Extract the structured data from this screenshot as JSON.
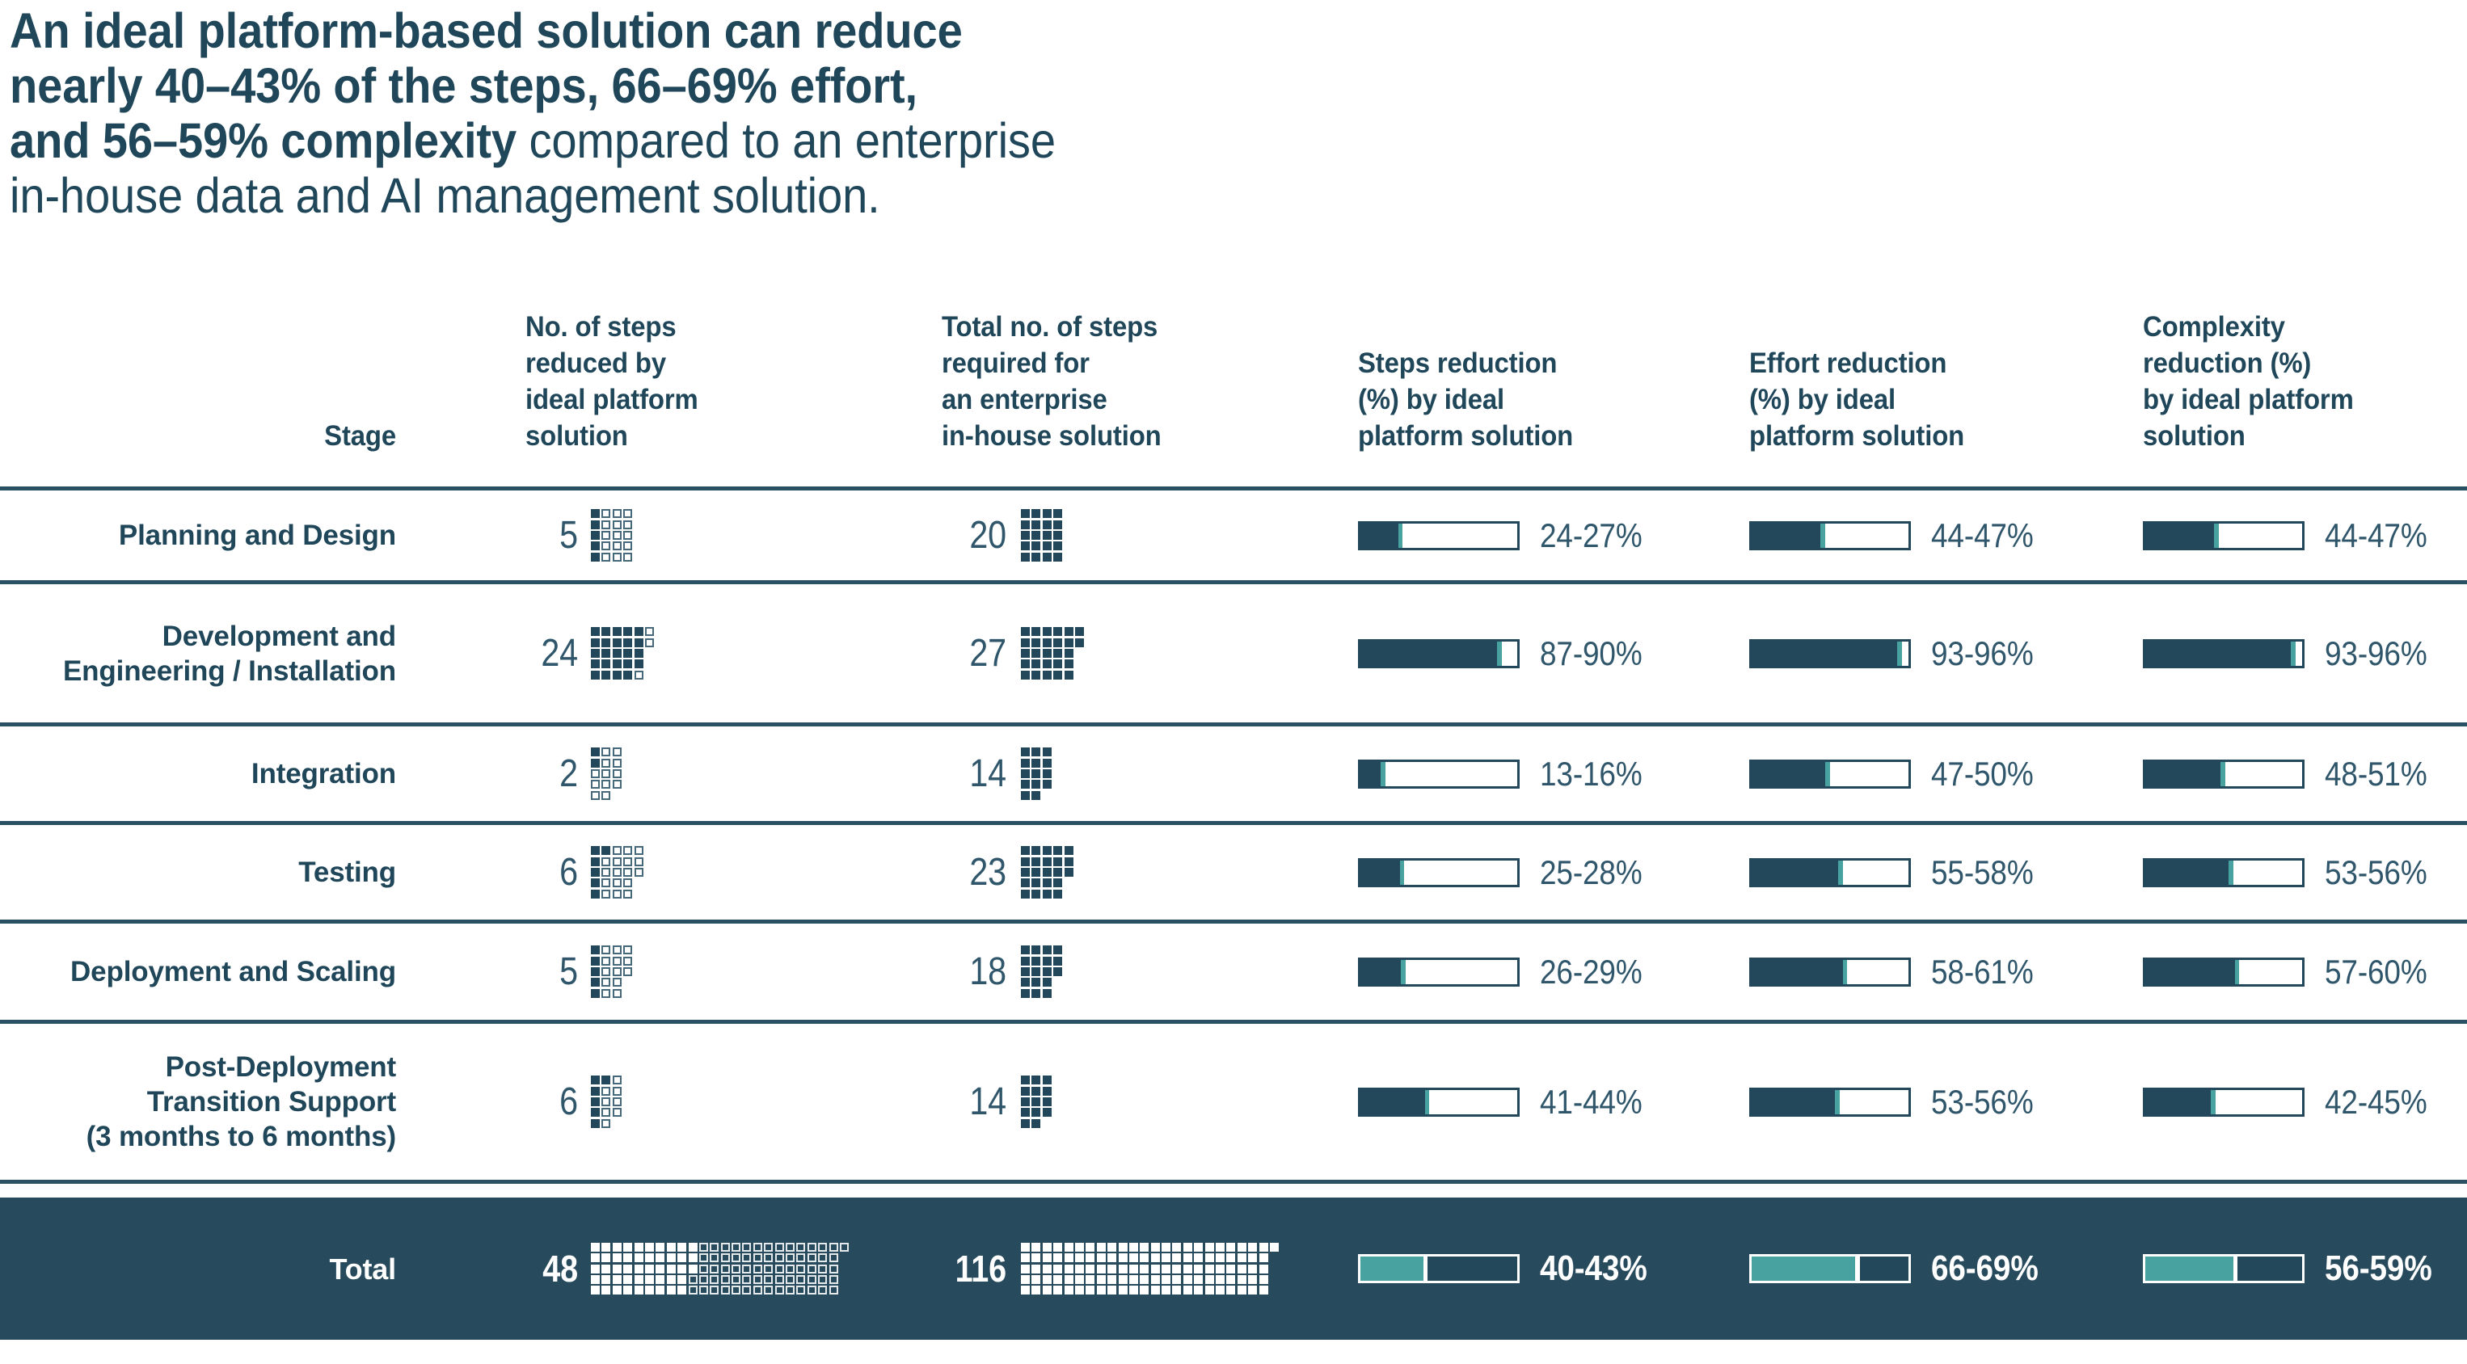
{
  "title": {
    "line1_bold": "An ideal platform-based solution can reduce",
    "line2_bold": "nearly 40–43% of the steps, 66–69% effort,",
    "line3_bold": "and 56–59% complexity",
    "line3_regular": " compared to an enterprise",
    "line4_regular": "in-house data and AI management solution."
  },
  "colors": {
    "navy_text": "#1F4659",
    "navy_fill": "#24485B",
    "number_text": "#2F566A",
    "teal_accent": "#48A29F",
    "row_line": "#2A5063",
    "total_band_background": "#274B5D",
    "white": "#FFFFFF"
  },
  "table": {
    "headers": {
      "stage": "Stage",
      "steps_reduced": "No. of steps\nreduced by\nideal platform\nsolution",
      "steps_total": "Total no. of steps\nrequired for\nan enterprise\nin-house solution",
      "steps_reduction": "Steps reduction\n(%) by ideal\nplatform solution",
      "effort_reduction": "Effort reduction\n(%) by ideal\nplatform solution",
      "complexity_reduction": "Complexity\nreduction (%)\nby ideal platform\nsolution"
    },
    "rows": [
      {
        "stage": "Planning and Design",
        "steps_reduced": 5,
        "steps_total": 20,
        "steps_reduction": "24-27%",
        "effort_reduction": "44-47%",
        "complexity_reduction": "44-47%"
      },
      {
        "stage": "Development and\nEngineering / Installation",
        "steps_reduced": 24,
        "steps_total": 27,
        "steps_reduction": "87-90%",
        "effort_reduction": "93-96%",
        "complexity_reduction": "93-96%"
      },
      {
        "stage": "Integration",
        "steps_reduced": 2,
        "steps_total": 14,
        "steps_reduction": "13-16%",
        "effort_reduction": "47-50%",
        "complexity_reduction": "48-51%"
      },
      {
        "stage": "Testing",
        "steps_reduced": 6,
        "steps_total": 23,
        "steps_reduction": "25-28%",
        "effort_reduction": "55-58%",
        "complexity_reduction": "53-56%"
      },
      {
        "stage": "Deployment and Scaling",
        "steps_reduced": 5,
        "steps_total": 18,
        "steps_reduction": "26-29%",
        "effort_reduction": "58-61%",
        "complexity_reduction": "57-60%"
      },
      {
        "stage": "Post-Deployment\nTransition Support\n(3 months to 6 months)",
        "steps_reduced": 6,
        "steps_total": 14,
        "steps_reduction": "41-44%",
        "effort_reduction": "53-56%",
        "complexity_reduction": "42-45%"
      }
    ],
    "total": {
      "stage": "Total",
      "steps_reduced": 48,
      "steps_total": 116,
      "steps_reduction": "40-43%",
      "effort_reduction": "66-69%",
      "complexity_reduction": "56-59%"
    }
  },
  "chart_data": {
    "type": "table",
    "title": "An ideal platform-based solution can reduce nearly 40–43% of the steps, 66–69% effort, and 56–59% complexity compared to an enterprise in-house data and AI management solution.",
    "columns": [
      "Stage",
      "No. of steps reduced by ideal platform solution",
      "Total no. of steps required for an enterprise in-house solution",
      "Steps reduction (%) by ideal platform solution",
      "Effort reduction (%) by ideal platform solution",
      "Complexity reduction (%) by ideal platform solution"
    ],
    "rows": [
      {
        "stage": "Planning and Design",
        "steps_reduced": 5,
        "total_steps": 20,
        "steps_reduction_pct": [
          24,
          27
        ],
        "effort_reduction_pct": [
          44,
          47
        ],
        "complexity_reduction_pct": [
          44,
          47
        ]
      },
      {
        "stage": "Development and Engineering / Installation",
        "steps_reduced": 24,
        "total_steps": 27,
        "steps_reduction_pct": [
          87,
          90
        ],
        "effort_reduction_pct": [
          93,
          96
        ],
        "complexity_reduction_pct": [
          93,
          96
        ]
      },
      {
        "stage": "Integration",
        "steps_reduced": 2,
        "total_steps": 14,
        "steps_reduction_pct": [
          13,
          16
        ],
        "effort_reduction_pct": [
          47,
          50
        ],
        "complexity_reduction_pct": [
          48,
          51
        ]
      },
      {
        "stage": "Testing",
        "steps_reduced": 6,
        "total_steps": 23,
        "steps_reduction_pct": [
          25,
          28
        ],
        "effort_reduction_pct": [
          55,
          58
        ],
        "complexity_reduction_pct": [
          53,
          56
        ]
      },
      {
        "stage": "Deployment and Scaling",
        "steps_reduced": 5,
        "total_steps": 18,
        "steps_reduction_pct": [
          26,
          29
        ],
        "effort_reduction_pct": [
          58,
          61
        ],
        "complexity_reduction_pct": [
          57,
          60
        ]
      },
      {
        "stage": "Post-Deployment Transition Support (3 months to 6 months)",
        "steps_reduced": 6,
        "total_steps": 14,
        "steps_reduction_pct": [
          41,
          44
        ],
        "effort_reduction_pct": [
          53,
          56
        ],
        "complexity_reduction_pct": [
          42,
          45
        ]
      },
      {
        "stage": "Total",
        "steps_reduced": 48,
        "total_steps": 116,
        "steps_reduction_pct": [
          40,
          43
        ],
        "effort_reduction_pct": [
          66,
          69
        ],
        "complexity_reduction_pct": [
          56,
          59
        ]
      }
    ],
    "visual_encoding": {
      "waffle": "one square = one step, 5 squares per column, filled = reduced/total steps",
      "bar": "dark segment = low bound %, teal sliver = low-to-high range, white = remainder of 100%",
      "total_row_bar": "teal segment = low bound %, white sliver = range, dark = remainder",
      "axis_range": [
        0,
        100
      ],
      "legend": "none",
      "grid": "off"
    }
  }
}
